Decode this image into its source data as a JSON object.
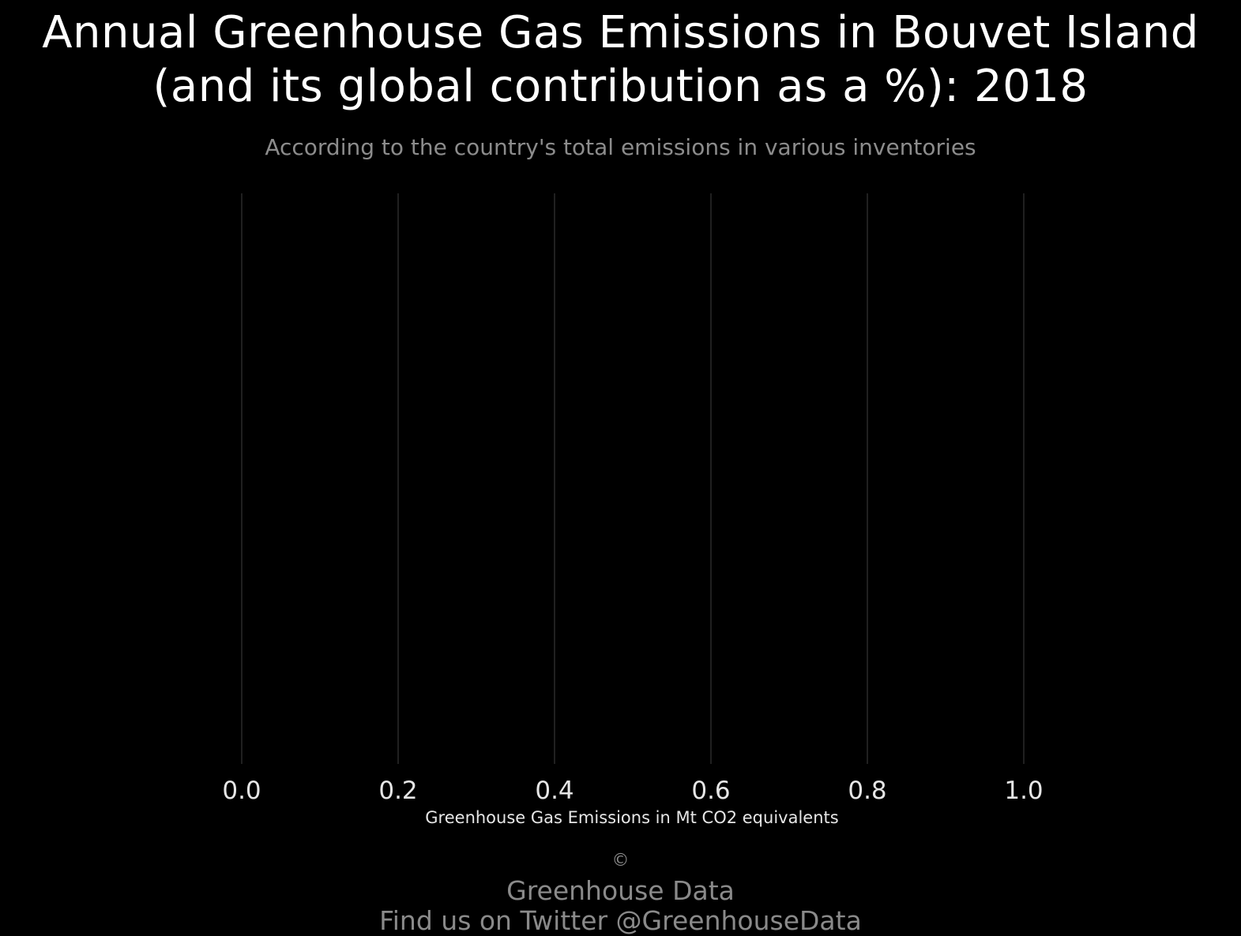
{
  "chart_data": {
    "type": "bar",
    "title_lines": [
      "Annual Greenhouse Gas Emissions in Bouvet Island",
      "(and its global contribution as a %): 2018"
    ],
    "subtitle": "According to the country's total emissions in various inventories",
    "xlabel": "Greenhouse Gas Emissions in Mt CO2 equivalents",
    "ylabel": "",
    "categories": [],
    "values": [],
    "xlim": [
      0,
      1.0
    ],
    "ticks": [
      "0.0",
      "0.2",
      "0.4",
      "0.6",
      "0.8",
      "1.0"
    ],
    "grid": true,
    "background": "#000000",
    "grid_color": "#2a2a2a"
  },
  "caption": {
    "symbol": "©",
    "line1": "Greenhouse Data",
    "line2": "Find us on Twitter @GreenhouseData"
  }
}
